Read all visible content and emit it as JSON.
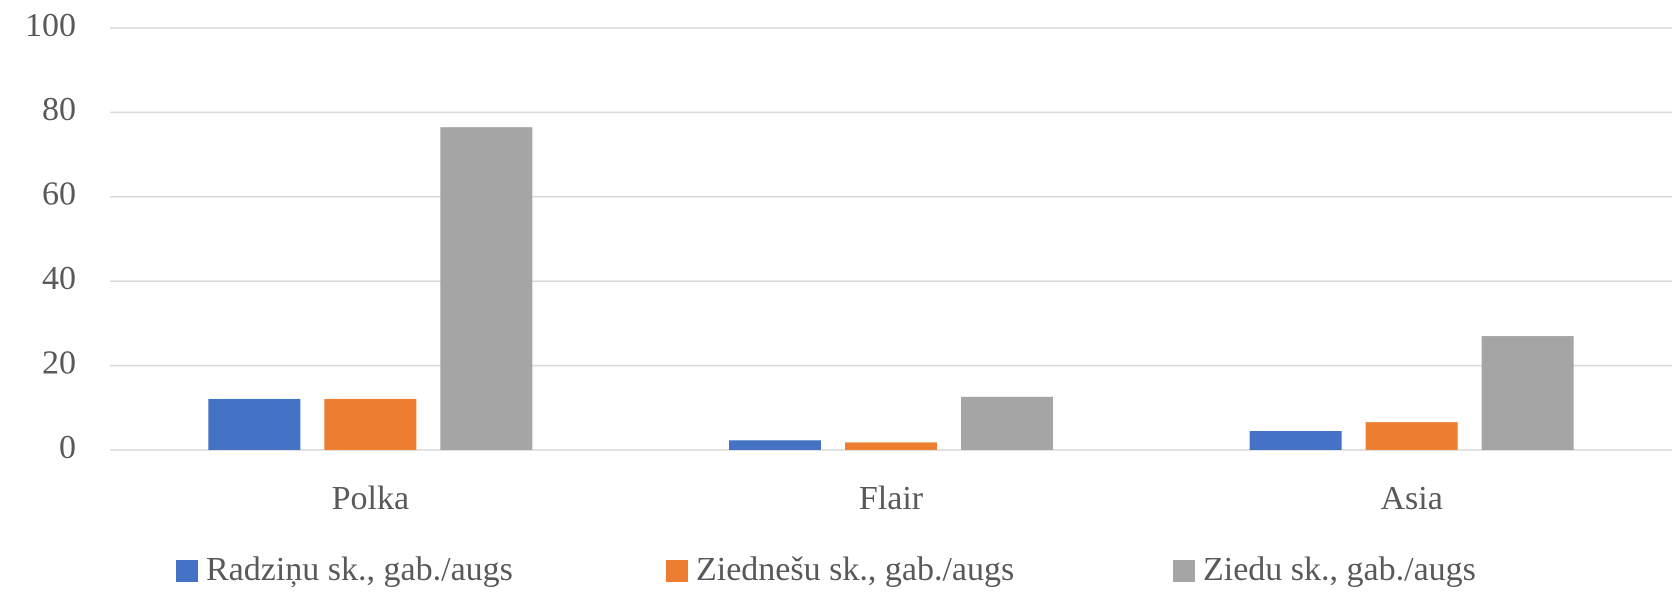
{
  "chart_data": {
    "type": "bar",
    "categories": [
      "Polka",
      "Flair",
      "Asia"
    ],
    "series": [
      {
        "name": "Radziņu sk., gab./augs",
        "color": "#4472c4",
        "values": [
          12.1,
          2.3,
          4.5
        ]
      },
      {
        "name": "Ziednešu sk., gab./augs",
        "color": "#ed7d31",
        "values": [
          12.1,
          1.8,
          6.6
        ]
      },
      {
        "name": "Ziedu sk., gab./augs",
        "color": "#a5a5a5",
        "values": [
          76.5,
          12.6,
          27.0
        ]
      }
    ],
    "ylim": [
      0,
      100
    ],
    "yticks": [
      0,
      20,
      40,
      60,
      80,
      100
    ],
    "grid": true,
    "legend": "bottom"
  }
}
